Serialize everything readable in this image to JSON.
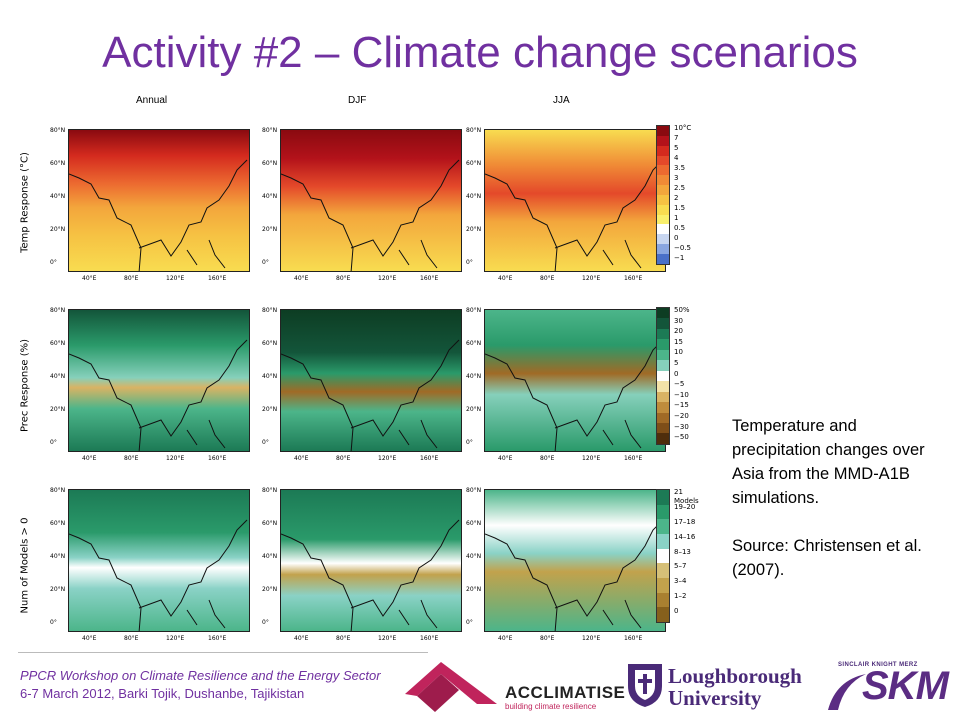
{
  "title": "Activity #2 – Climate change scenarios",
  "figure": {
    "columns": [
      "Annual",
      "DJF",
      "JJA"
    ],
    "rows": [
      "Temp Response (°C)",
      "Prec Response (%)",
      "Num of Models > 0"
    ],
    "lat_ticks": [
      "80°N",
      "60°N",
      "40°N",
      "20°N",
      "0°"
    ],
    "lon_ticks": [
      "40°E",
      "80°E",
      "120°E",
      "160°E"
    ],
    "temp_scale": [
      "10°C",
      "7",
      "5",
      "4",
      "3.5",
      "3",
      "2.5",
      "2",
      "1.5",
      "1",
      "0.5",
      "0",
      "−0.5",
      "−1"
    ],
    "prec_scale": [
      "50%",
      "30",
      "20",
      "15",
      "10",
      "5",
      "0",
      "−5",
      "−10",
      "−15",
      "−20",
      "−30",
      "−50"
    ],
    "models_scale": [
      "21 Models",
      "19–20",
      "17–18",
      "14–16",
      "8–13",
      "5–7",
      "3–4",
      "1–2",
      "0"
    ],
    "colors": {
      "temp": [
        "#8a0a10",
        "#b3121a",
        "#d42a1e",
        "#e4492a",
        "#ec6a30",
        "#f08a36",
        "#f3a63c",
        "#f6c243",
        "#f8dc50",
        "#f9ef6c",
        "#ffffff",
        "#c8d6f0",
        "#8aa6e0",
        "#4a70c8"
      ],
      "prec": [
        "#0d3d23",
        "#13553a",
        "#1c7a55",
        "#2a9a6a",
        "#4cb58a",
        "#86d0bb",
        "#ffffff",
        "#f3e2a8",
        "#d9b364",
        "#bf8c3c",
        "#a06a26",
        "#7e4e18",
        "#4f2e0c"
      ],
      "models": [
        "#1c7a55",
        "#2a9a6a",
        "#4cb58a",
        "#8ad2c6",
        "#ffffff",
        "#d6c078",
        "#c2a24c",
        "#a98030",
        "#86601c"
      ]
    }
  },
  "caption": {
    "paragraph1": "Temperature and precipitation changes over Asia from the MMD-A1B simulations.",
    "paragraph2": "Source: Christensen et al. (2007)."
  },
  "footer": {
    "line1": "PPCR Workshop on Climate Resilience and the Energy Sector",
    "line2": "6-7 March 2012, Barki Tojik, Dushanbe, Tajikistan"
  },
  "logos": {
    "acclimatise_name": "ACCLIMATISE",
    "acclimatise_tagline": "building climate resilience",
    "loughborough_line1": "Loughborough",
    "loughborough_line2": "University",
    "skm_small": "SINCLAIR KNIGHT MERZ",
    "skm_big": "SKM"
  }
}
